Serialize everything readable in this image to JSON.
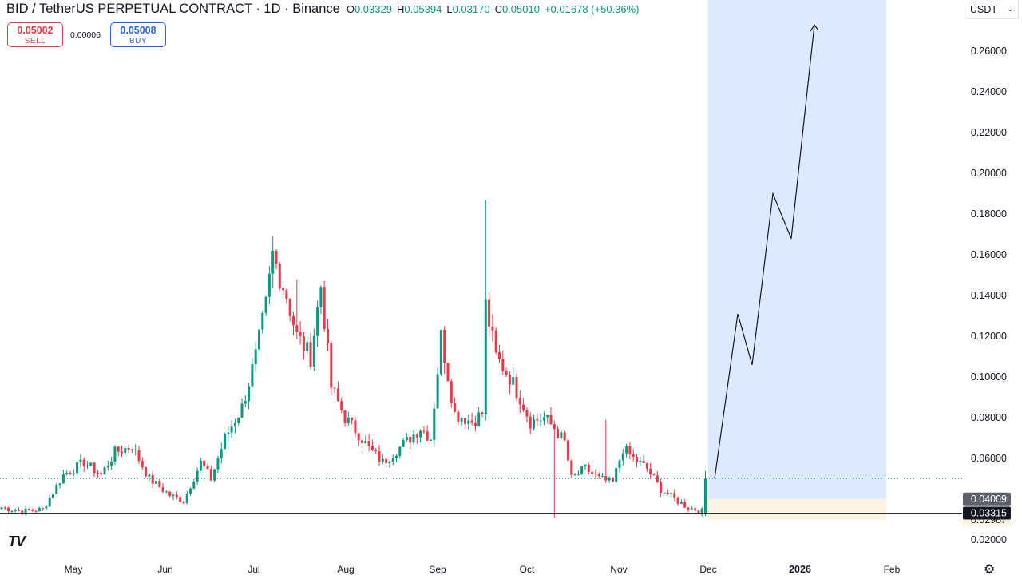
{
  "header": {
    "title": "BID / TetherUS PERPETUAL CONTRACT · 1D · Binance",
    "open_label": "O",
    "open": "0.03329",
    "high_label": "H",
    "high": "0.05394",
    "low_label": "L",
    "low": "0.03170",
    "close_label": "C",
    "close": "0.05010",
    "change": "+0.01678 (+50.36%)"
  },
  "trade": {
    "sell_price": "0.05002",
    "sell_label": "SELL",
    "spread": "0.00006",
    "buy_price": "0.05008",
    "buy_label": "BUY"
  },
  "currency": {
    "label": "USDT",
    "chevron": "chevron-down-icon"
  },
  "logo": {
    "text": "TV"
  },
  "settings": {
    "icon": "gear-icon"
  },
  "colors": {
    "up": "#089981",
    "down": "#f23645",
    "zone": "#dbeafe",
    "stop_zone": "#fdf3e1",
    "line": "#131722"
  },
  "chart_data": {
    "type": "candlestick",
    "y_ticks": [
      "0.26000",
      "0.24000",
      "0.22000",
      "0.20000",
      "0.18000",
      "0.16000",
      "0.14000",
      "0.12000",
      "0.10000",
      "0.08000",
      "0.06000",
      "0.02000"
    ],
    "ylim": [
      0.016,
      0.28
    ],
    "x_ticks": [
      "May",
      "Jun",
      "Jul",
      "Aug",
      "Sep",
      "Oct",
      "Nov",
      "Dec",
      "2026",
      "Feb"
    ],
    "price_labels": [
      {
        "value": "0.04009",
        "price": 0.04009
      },
      {
        "value": "0.03315",
        "price": 0.03315
      },
      {
        "value": "0.02987",
        "price": 0.02987
      }
    ],
    "current_price": 0.0501,
    "support_price": 0.0331,
    "ohlc_last": {
      "open": 0.03329,
      "high": 0.05394,
      "low": 0.0317,
      "close": 0.0501
    },
    "projection_path": [
      0.0501,
      0.131,
      0.106,
      0.19,
      0.168,
      0.273
    ],
    "projection_zone": {
      "from": "Dec",
      "to": "Feb"
    },
    "anchors": [
      {
        "d": 0,
        "p": 0.036
      },
      {
        "d": 6,
        "p": 0.034
      },
      {
        "d": 12,
        "p": 0.035
      },
      {
        "d": 18,
        "p": 0.052
      },
      {
        "d": 24,
        "p": 0.058
      },
      {
        "d": 29,
        "p": 0.052
      },
      {
        "d": 33,
        "p": 0.063
      },
      {
        "d": 38,
        "p": 0.066
      },
      {
        "d": 43,
        "p": 0.05
      },
      {
        "d": 49,
        "p": 0.042
      },
      {
        "d": 53,
        "p": 0.039
      },
      {
        "d": 55,
        "p": 0.047
      },
      {
        "d": 58,
        "p": 0.058
      },
      {
        "d": 61,
        "p": 0.05
      },
      {
        "d": 65,
        "p": 0.07
      },
      {
        "d": 70,
        "p": 0.085
      },
      {
        "d": 74,
        "p": 0.11
      },
      {
        "d": 77,
        "p": 0.135
      },
      {
        "d": 79,
        "p": 0.16
      },
      {
        "d": 83,
        "p": 0.14
      },
      {
        "d": 86,
        "p": 0.12
      },
      {
        "d": 90,
        "p": 0.11
      },
      {
        "d": 93,
        "p": 0.145
      },
      {
        "d": 96,
        "p": 0.095
      },
      {
        "d": 100,
        "p": 0.08
      },
      {
        "d": 104,
        "p": 0.072
      },
      {
        "d": 107,
        "p": 0.065
      },
      {
        "d": 111,
        "p": 0.058
      },
      {
        "d": 115,
        "p": 0.064
      },
      {
        "d": 119,
        "p": 0.07
      },
      {
        "d": 122,
        "p": 0.075
      },
      {
        "d": 125,
        "p": 0.07
      },
      {
        "d": 128,
        "p": 0.12
      },
      {
        "d": 132,
        "p": 0.082
      },
      {
        "d": 137,
        "p": 0.078
      },
      {
        "d": 140,
        "p": 0.082
      },
      {
        "d": 141,
        "p": 0.135
      },
      {
        "d": 144,
        "p": 0.11
      },
      {
        "d": 148,
        "p": 0.1
      },
      {
        "d": 151,
        "p": 0.09
      },
      {
        "d": 154,
        "p": 0.078
      },
      {
        "d": 158,
        "p": 0.08
      },
      {
        "d": 161,
        "p": 0.075
      },
      {
        "d": 164,
        "p": 0.068
      },
      {
        "d": 166,
        "p": 0.05
      },
      {
        "d": 170,
        "p": 0.055
      },
      {
        "d": 174,
        "p": 0.05
      },
      {
        "d": 178,
        "p": 0.048
      },
      {
        "d": 181,
        "p": 0.065
      },
      {
        "d": 184,
        "p": 0.06
      },
      {
        "d": 188,
        "p": 0.055
      },
      {
        "d": 192,
        "p": 0.045
      },
      {
        "d": 196,
        "p": 0.04
      },
      {
        "d": 200,
        "p": 0.036
      },
      {
        "d": 204,
        "p": 0.034
      },
      {
        "d": 205,
        "p": 0.0501
      }
    ]
  }
}
